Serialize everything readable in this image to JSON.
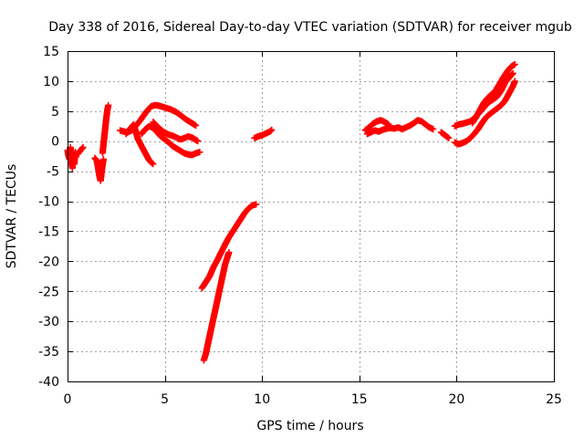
{
  "chart_data": {
    "type": "scatter",
    "title": "Day 338 of 2016, Sidereal Day-to-day VTEC variation (SDTVAR) for receiver mgub",
    "xlabel": "GPS time / hours",
    "ylabel": "SDTVAR / TECUs",
    "xlim": [
      0,
      25
    ],
    "ylim": [
      -40,
      15
    ],
    "x_ticks": [
      0,
      5,
      10,
      15,
      20,
      25
    ],
    "y_ticks": [
      -40,
      -35,
      -30,
      -25,
      -20,
      -15,
      -10,
      -5,
      0,
      5,
      10,
      15
    ],
    "grid": true,
    "marker": "plus",
    "color": "#ff0000",
    "series": [
      {
        "segments": [
          [
            [
              0.0,
              -1.5
            ],
            [
              0.05,
              -2.5
            ],
            [
              0.1,
              -3.0
            ],
            [
              0.15,
              -1.0
            ],
            [
              0.2,
              -3.5
            ],
            [
              0.25,
              -4.5
            ],
            [
              0.3,
              -2.0
            ],
            [
              0.35,
              -3.8
            ],
            [
              0.4,
              -1.8
            ],
            [
              0.45,
              -2.6
            ]
          ],
          [
            [
              0.5,
              -2.2
            ],
            [
              0.6,
              -1.8
            ],
            [
              0.7,
              -1.4
            ],
            [
              0.8,
              -1.0
            ]
          ],
          [
            [
              1.4,
              -2.8
            ],
            [
              1.5,
              -3.2
            ],
            [
              1.55,
              -4.0
            ],
            [
              1.6,
              -5.0
            ],
            [
              1.65,
              -6.0
            ],
            [
              1.7,
              -6.6
            ],
            [
              1.75,
              -5.2
            ],
            [
              1.8,
              -4.0
            ],
            [
              1.85,
              -3.0
            ]
          ],
          [
            [
              1.8,
              -2.0
            ],
            [
              1.85,
              -0.5
            ],
            [
              1.9,
              1.0
            ],
            [
              1.95,
              2.5
            ],
            [
              2.0,
              4.0
            ],
            [
              2.05,
              5.2
            ],
            [
              2.1,
              6.0
            ]
          ],
          [
            [
              2.7,
              1.8
            ],
            [
              2.9,
              1.6
            ],
            [
              3.1,
              1.5
            ],
            [
              3.3,
              1.8
            ],
            [
              3.5,
              2.5
            ],
            [
              3.7,
              3.3
            ],
            [
              3.9,
              4.2
            ],
            [
              4.1,
              5.1
            ],
            [
              4.3,
              5.8
            ],
            [
              4.5,
              6.0
            ],
            [
              4.7,
              5.9
            ],
            [
              4.9,
              5.7
            ],
            [
              5.1,
              5.5
            ],
            [
              5.3,
              5.3
            ],
            [
              5.5,
              5.0
            ],
            [
              5.7,
              4.6
            ],
            [
              5.9,
              4.1
            ],
            [
              6.1,
              3.6
            ],
            [
              6.3,
              3.2
            ],
            [
              6.5,
              2.8
            ],
            [
              6.6,
              2.6
            ]
          ],
          [
            [
              3.0,
              1.2
            ],
            [
              3.2,
              2.0
            ],
            [
              3.4,
              2.8
            ],
            [
              3.5,
              1.8
            ],
            [
              3.6,
              0.5
            ],
            [
              3.8,
              -0.8
            ],
            [
              4.0,
              -2.0
            ],
            [
              4.2,
              -3.2
            ],
            [
              4.4,
              -3.8
            ]
          ],
          [
            [
              3.8,
              1.2
            ],
            [
              4.0,
              2.0
            ],
            [
              4.2,
              2.5
            ],
            [
              4.4,
              2.2
            ],
            [
              4.6,
              1.5
            ],
            [
              4.8,
              0.8
            ],
            [
              5.0,
              0.3
            ],
            [
              5.2,
              -0.2
            ],
            [
              5.4,
              -0.8
            ],
            [
              5.6,
              -1.2
            ],
            [
              5.8,
              -1.6
            ],
            [
              6.0,
              -2.0
            ],
            [
              6.2,
              -2.2
            ],
            [
              6.4,
              -2.3
            ],
            [
              6.6,
              -2.0
            ],
            [
              6.8,
              -1.8
            ]
          ],
          [
            [
              4.4,
              3.2
            ],
            [
              4.6,
              2.5
            ],
            [
              4.8,
              1.9
            ],
            [
              5.0,
              1.4
            ],
            [
              5.2,
              1.1
            ],
            [
              5.4,
              0.9
            ],
            [
              5.6,
              0.6
            ],
            [
              5.8,
              0.3
            ],
            [
              6.0,
              0.5
            ],
            [
              6.2,
              0.8
            ],
            [
              6.4,
              0.6
            ],
            [
              6.6,
              0.2
            ],
            [
              6.7,
              0.0
            ]
          ],
          [
            [
              6.9,
              -24.5
            ],
            [
              7.1,
              -23.5
            ],
            [
              7.3,
              -22.5
            ],
            [
              7.5,
              -21.0
            ],
            [
              7.7,
              -19.8
            ],
            [
              7.9,
              -18.5
            ],
            [
              8.1,
              -17.2
            ],
            [
              8.3,
              -16.0
            ],
            [
              8.5,
              -15.0
            ],
            [
              8.7,
              -14.0
            ],
            [
              8.9,
              -13.0
            ],
            [
              9.1,
              -12.0
            ],
            [
              9.3,
              -11.2
            ],
            [
              9.5,
              -10.7
            ],
            [
              9.7,
              -10.5
            ]
          ],
          [
            [
              7.0,
              -36.5
            ],
            [
              7.1,
              -35.5
            ],
            [
              7.2,
              -34.0
            ],
            [
              7.3,
              -32.5
            ],
            [
              7.4,
              -31.0
            ],
            [
              7.5,
              -29.5
            ],
            [
              7.6,
              -28.0
            ],
            [
              7.7,
              -26.5
            ],
            [
              7.8,
              -25.0
            ],
            [
              7.9,
              -23.5
            ],
            [
              8.0,
              -22.0
            ],
            [
              8.1,
              -20.5
            ],
            [
              8.2,
              -19.5
            ],
            [
              8.3,
              -18.5
            ]
          ],
          [
            [
              9.6,
              0.5
            ],
            [
              9.8,
              0.8
            ],
            [
              10.0,
              1.0
            ],
            [
              10.2,
              1.3
            ],
            [
              10.4,
              1.6
            ],
            [
              10.5,
              1.9
            ]
          ],
          [
            [
              15.3,
              1.8
            ],
            [
              15.5,
              2.3
            ],
            [
              15.7,
              2.9
            ],
            [
              15.9,
              3.3
            ],
            [
              16.1,
              3.5
            ],
            [
              16.3,
              3.2
            ],
            [
              16.5,
              2.8
            ]
          ],
          [
            [
              15.4,
              1.2
            ],
            [
              15.6,
              1.5
            ],
            [
              15.8,
              1.8
            ],
            [
              16.0,
              1.6
            ],
            [
              16.2,
              1.9
            ],
            [
              16.4,
              2.1
            ],
            [
              16.6,
              2.2
            ],
            [
              16.8,
              2.1
            ],
            [
              17.0,
              2.3
            ],
            [
              17.2,
              2.0
            ],
            [
              17.4,
              2.3
            ],
            [
              17.6,
              2.6
            ],
            [
              17.8,
              3.0
            ],
            [
              18.0,
              3.5
            ],
            [
              18.2,
              3.3
            ],
            [
              18.4,
              2.8
            ],
            [
              18.6,
              2.3
            ],
            [
              18.8,
              2.0
            ]
          ],
          [
            [
              19.2,
              1.5
            ],
            [
              19.4,
              1.0
            ],
            [
              19.6,
              0.5
            ]
          ],
          [
            [
              19.9,
              2.5
            ],
            [
              20.1,
              2.8
            ],
            [
              20.3,
              2.9
            ],
            [
              20.5,
              3.1
            ],
            [
              20.7,
              3.3
            ],
            [
              20.9,
              3.8
            ],
            [
              21.1,
              4.5
            ],
            [
              21.3,
              5.2
            ],
            [
              21.5,
              6.0
            ],
            [
              21.7,
              6.6
            ],
            [
              21.9,
              7.0
            ],
            [
              22.1,
              7.5
            ],
            [
              22.3,
              8.5
            ],
            [
              22.5,
              9.8
            ],
            [
              22.7,
              10.6
            ],
            [
              22.9,
              11.3
            ]
          ],
          [
            [
              19.9,
              -0.2
            ],
            [
              20.1,
              -0.5
            ],
            [
              20.3,
              -0.3
            ],
            [
              20.5,
              0.0
            ],
            [
              20.7,
              0.5
            ],
            [
              20.9,
              1.2
            ],
            [
              21.1,
              2.0
            ],
            [
              21.3,
              3.0
            ],
            [
              21.5,
              3.9
            ],
            [
              21.7,
              4.5
            ],
            [
              21.9,
              5.0
            ],
            [
              22.1,
              5.5
            ],
            [
              22.3,
              6.0
            ],
            [
              22.5,
              6.8
            ],
            [
              22.7,
              8.0
            ],
            [
              22.9,
              9.2
            ],
            [
              23.0,
              10.0
            ]
          ],
          [
            [
              20.8,
              3.0
            ],
            [
              21.0,
              4.0
            ],
            [
              21.2,
              5.2
            ],
            [
              21.4,
              6.4
            ],
            [
              21.6,
              7.2
            ],
            [
              21.8,
              7.8
            ],
            [
              22.0,
              8.4
            ],
            [
              22.2,
              9.5
            ],
            [
              22.4,
              10.6
            ],
            [
              22.6,
              11.6
            ],
            [
              22.8,
              12.4
            ],
            [
              23.0,
              12.8
            ]
          ]
        ]
      }
    ]
  }
}
